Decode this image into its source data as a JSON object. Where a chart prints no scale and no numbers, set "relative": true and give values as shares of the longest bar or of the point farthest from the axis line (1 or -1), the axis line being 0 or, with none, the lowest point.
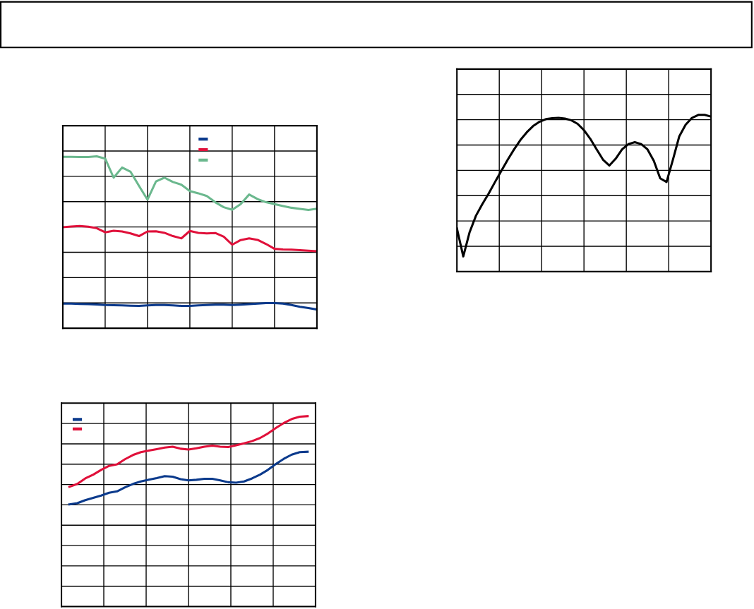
{
  "chart_data": [
    {
      "type": "line",
      "relative": true,
      "categories": [
        null,
        null,
        null,
        null,
        null,
        null,
        null,
        null,
        null,
        null,
        null,
        null,
        null,
        null,
        null,
        null,
        null,
        null,
        null,
        null,
        null,
        null,
        null,
        null,
        null,
        null,
        null,
        null,
        null,
        null,
        null
      ],
      "grid": true,
      "series": [
        {
          "color": "#0b3a8c",
          "values": [
            0.143,
            0.143,
            0.141,
            0.14,
            0.138,
            0.135,
            0.134,
            0.133,
            0.131,
            0.13,
            0.133,
            0.135,
            0.135,
            0.133,
            0.13,
            0.13,
            0.133,
            0.135,
            0.137,
            0.137,
            0.135,
            0.137,
            0.14,
            0.143,
            0.146,
            0.146,
            0.143,
            0.135,
            0.125,
            0.118,
            0.109
          ]
        },
        {
          "color": "#e0103a",
          "values": [
            0.588,
            0.592,
            0.595,
            0.591,
            0.582,
            0.558,
            0.567,
            0.563,
            0.552,
            0.536,
            0.563,
            0.564,
            0.555,
            0.536,
            0.523,
            0.566,
            0.555,
            0.552,
            0.554,
            0.533,
            0.486,
            0.513,
            0.523,
            0.514,
            0.49,
            0.462,
            0.458,
            0.457,
            0.454,
            0.451,
            0.448
          ]
        },
        {
          "color": "#6bb88e",
          "values": [
            0.997,
            0.997,
            0.996,
            0.996,
            1.0,
            0.987,
            0.876,
            0.935,
            0.91,
            0.828,
            0.748,
            0.854,
            0.876,
            0.851,
            0.835,
            0.798,
            0.785,
            0.769,
            0.733,
            0.704,
            0.689,
            0.722,
            0.778,
            0.751,
            0.733,
            0.722,
            0.711,
            0.701,
            0.694,
            0.688,
            0.695
          ]
        }
      ]
    },
    {
      "type": "line",
      "relative": true,
      "categories": [
        null,
        null,
        null,
        null,
        null,
        null,
        null,
        null,
        null,
        null,
        null,
        null,
        null,
        null,
        null,
        null,
        null,
        null,
        null,
        null,
        null,
        null,
        null,
        null,
        null,
        null,
        null,
        null,
        null,
        null,
        null
      ],
      "grid": true,
      "series": [
        {
          "color": "#0b3a8c",
          "values": [
            0.537,
            0.543,
            0.559,
            0.571,
            0.583,
            0.598,
            0.605,
            0.626,
            0.644,
            0.657,
            0.666,
            0.675,
            0.685,
            0.682,
            0.669,
            0.663,
            0.666,
            0.671,
            0.671,
            0.663,
            0.653,
            0.651,
            0.657,
            0.673,
            0.693,
            0.718,
            0.749,
            0.776,
            0.798,
            0.811,
            0.813
          ]
        },
        {
          "color": "#e0103a",
          "values": [
            0.629,
            0.644,
            0.673,
            0.693,
            0.718,
            0.739,
            0.747,
            0.774,
            0.796,
            0.811,
            0.819,
            0.827,
            0.835,
            0.84,
            0.829,
            0.825,
            0.831,
            0.84,
            0.845,
            0.84,
            0.838,
            0.847,
            0.857,
            0.869,
            0.885,
            0.909,
            0.938,
            0.964,
            0.985,
            0.997,
            1.0
          ]
        }
      ]
    },
    {
      "type": "line",
      "relative": true,
      "categories": [
        null,
        null,
        null,
        null,
        null,
        null,
        null,
        null,
        null,
        null,
        null,
        null,
        null,
        null,
        null,
        null,
        null,
        null,
        null,
        null,
        null,
        null,
        null,
        null,
        null,
        null,
        null,
        null,
        null,
        null,
        null,
        null,
        null,
        null,
        null,
        null,
        null,
        null,
        null,
        null,
        null
      ],
      "grid": true,
      "series": [
        {
          "color": "#000000",
          "values": [
            0.275,
            0.097,
            0.252,
            0.357,
            0.431,
            0.498,
            0.572,
            0.643,
            0.714,
            0.78,
            0.84,
            0.889,
            0.929,
            0.956,
            0.973,
            0.979,
            0.981,
            0.977,
            0.966,
            0.943,
            0.903,
            0.847,
            0.78,
            0.714,
            0.677,
            0.721,
            0.78,
            0.814,
            0.826,
            0.814,
            0.78,
            0.706,
            0.595,
            0.572,
            0.714,
            0.863,
            0.937,
            0.981,
            1.0,
            1.0,
            0.989
          ]
        }
      ]
    }
  ]
}
